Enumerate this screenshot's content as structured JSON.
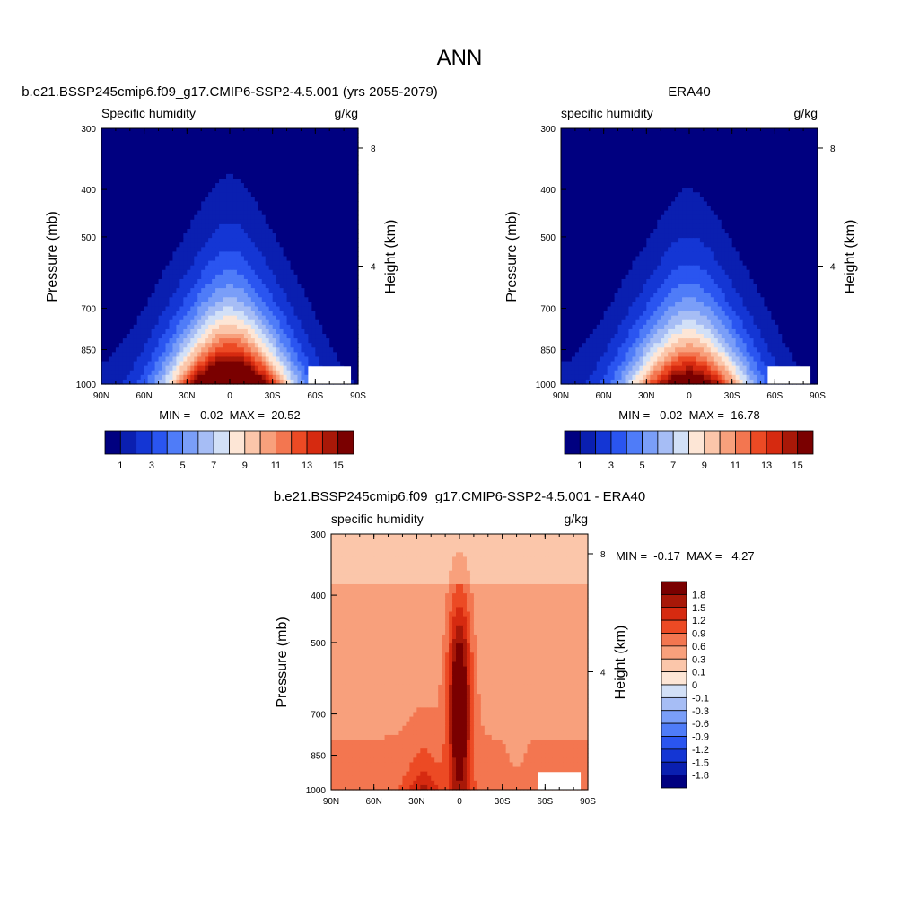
{
  "page": {
    "title": "ANN"
  },
  "colors": {
    "pos_scale": [
      "#000080",
      "#0a1fb0",
      "#1436d4",
      "#2a55f0",
      "#4f7cf8",
      "#7a9ef8",
      "#a6bdf5",
      "#d2e0f7",
      "#fde6d6",
      "#fbc6aa",
      "#f8a07c",
      "#f37650",
      "#ec4a24",
      "#d62a10",
      "#a81808",
      "#7a0000"
    ],
    "diff_scale": [
      "#000080",
      "#0a1fb0",
      "#1436d4",
      "#2a55f0",
      "#4f7cf8",
      "#7a9ef8",
      "#a6bdf5",
      "#d2e0f7",
      "#fde6d6",
      "#fbc6aa",
      "#f8a07c",
      "#f37650",
      "#ec4a24",
      "#d62a10",
      "#a81808",
      "#7a0000"
    ]
  },
  "panels": [
    {
      "id": "model",
      "title": "b.e21.BSSP245cmip6.f09_g17.CMIP6-SSP2-4.5.001 (yrs 2055-2079)",
      "left_label": "Specific humidity",
      "right_label": "g/kg",
      "ylabel": "Pressure (mb)",
      "ylabel_right": "Height (km)",
      "stats": "MIN =   0.02  MAX =  20.52",
      "colorbar_labels": [
        "1",
        "3",
        "5",
        "7",
        "9",
        "11",
        "13",
        "15"
      ]
    },
    {
      "id": "obs",
      "title": "ERA40",
      "left_label": "specific humidity",
      "right_label": "g/kg",
      "ylabel": "Pressure (mb)",
      "ylabel_right": "Height (km)",
      "stats": "MIN =   0.02  MAX =  16.78",
      "colorbar_labels": [
        "1",
        "3",
        "5",
        "7",
        "9",
        "11",
        "13",
        "15"
      ]
    },
    {
      "id": "diff",
      "title": "b.e21.BSSP245cmip6.f09_g17.CMIP6-SSP2-4.5.001 - ERA40",
      "left_label": "specific humidity",
      "right_label": "g/kg",
      "ylabel": "Pressure (mb)",
      "ylabel_right": "Height (km)",
      "stats": "MIN =  -0.17  MAX =   4.27",
      "colorbar_labels": [
        "1.8",
        "1.5",
        "1.2",
        "0.9",
        "0.6",
        "0.3",
        "0.1",
        "0",
        "-0.1",
        "-0.3",
        "-0.6",
        "-0.9",
        "-1.2",
        "-1.5",
        "-1.8"
      ]
    }
  ],
  "chart_data": [
    {
      "type": "heatmap",
      "title": "b.e21.BSSP245cmip6.f09_g17.CMIP6-SSP2-4.5.001 (yrs 2055-2079)",
      "subtitle": "Specific humidity",
      "units": "g/kg",
      "xlabel": "",
      "ylabel": "Pressure (mb)",
      "ylabel_right": "Height (km)",
      "x_ticks": [
        "90N",
        "60N",
        "30N",
        "0",
        "30S",
        "60S",
        "90S"
      ],
      "y_ticks": [
        "300",
        "400",
        "500",
        "700",
        "850",
        "1000"
      ],
      "y_ticks_right": [
        "8",
        "4"
      ],
      "ylim": [
        1000,
        300
      ],
      "contour_levels": [
        1,
        2,
        3,
        4,
        5,
        6,
        7,
        8,
        9,
        10,
        11,
        12,
        13,
        14,
        15
      ],
      "min": 0.02,
      "max": 20.52,
      "surface_qmax": 20.5,
      "peak_top_pressure": 330
    },
    {
      "type": "heatmap",
      "title": "ERA40",
      "subtitle": "specific humidity",
      "units": "g/kg",
      "xlabel": "",
      "ylabel": "Pressure (mb)",
      "ylabel_right": "Height (km)",
      "x_ticks": [
        "90N",
        "60N",
        "30N",
        "0",
        "30S",
        "60S",
        "90S"
      ],
      "y_ticks": [
        "300",
        "400",
        "500",
        "700",
        "850",
        "1000"
      ],
      "y_ticks_right": [
        "8",
        "4"
      ],
      "ylim": [
        1000,
        300
      ],
      "contour_levels": [
        1,
        2,
        3,
        4,
        5,
        6,
        7,
        8,
        9,
        10,
        11,
        12,
        13,
        14,
        15
      ],
      "min": 0.02,
      "max": 16.78,
      "surface_qmax": 16.8,
      "peak_top_pressure": 390
    },
    {
      "type": "heatmap",
      "title": "b.e21.BSSP245cmip6.f09_g17.CMIP6-SSP2-4.5.001 - ERA40",
      "subtitle": "specific humidity",
      "units": "g/kg",
      "xlabel": "",
      "ylabel": "Pressure (mb)",
      "ylabel_right": "Height (km)",
      "x_ticks": [
        "90N",
        "60N",
        "30N",
        "0",
        "30S",
        "60S",
        "90S"
      ],
      "y_ticks": [
        "300",
        "400",
        "500",
        "700",
        "850",
        "1000"
      ],
      "y_ticks_right": [
        "8",
        "4"
      ],
      "ylim": [
        1000,
        300
      ],
      "contour_levels": [
        -1.8,
        -1.5,
        -1.2,
        -0.9,
        -0.6,
        -0.3,
        -0.1,
        0,
        0.1,
        0.3,
        0.6,
        0.9,
        1.2,
        1.5,
        1.8
      ],
      "min": -0.17,
      "max": 4.27
    }
  ]
}
